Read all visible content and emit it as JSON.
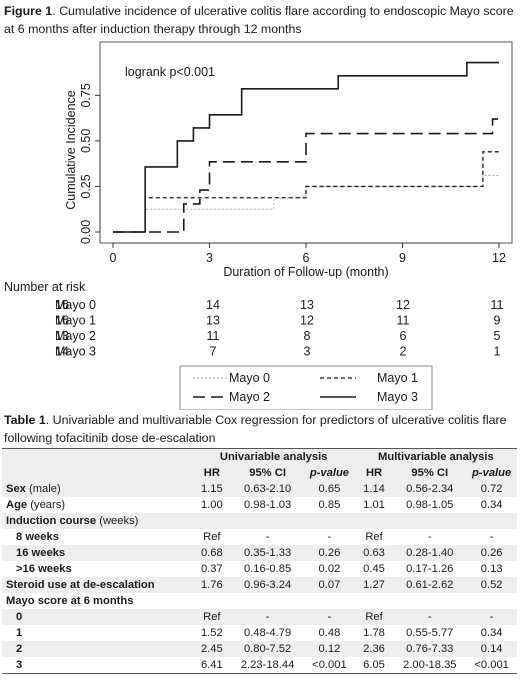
{
  "figure_caption": {
    "label": "Figure 1",
    "text": ". Cumulative incidence of ulcerative colitis flare according to endoscopic Mayo score at 6 months after induction therapy through 12 months"
  },
  "chart_data": {
    "type": "line",
    "step": true,
    "xlabel": "Duration of Follow-up (month)",
    "ylabel": "Cumulative Incidence",
    "x_ticks": [
      0,
      3,
      6,
      9,
      12
    ],
    "y_ticks": [
      "0.00",
      "0.25",
      "0.50",
      "0.75"
    ],
    "y_tick_values": [
      0,
      0.25,
      0.5,
      0.75
    ],
    "xlim": [
      0,
      12
    ],
    "ylim": [
      0,
      0.9
    ],
    "annotation": "logrank p<0.001",
    "series": [
      {
        "name": "Mayo 0",
        "style": "dotted",
        "color": "#aaaaaa",
        "x": [
          0,
          1.0,
          3.0,
          5.0,
          6.0,
          11.5,
          12
        ],
        "y": [
          0,
          0.125,
          0.125,
          0.188,
          0.25,
          0.31,
          0.31
        ]
      },
      {
        "name": "Mayo 1",
        "style": "short-dash",
        "color": "#1a1a1a",
        "x": [
          0,
          1.0,
          3.0,
          6.0,
          11.5,
          12
        ],
        "y": [
          0,
          0.188,
          0.188,
          0.25,
          0.44,
          0.44
        ]
      },
      {
        "name": "Mayo 2",
        "style": "long-dash",
        "color": "#1a1a1a",
        "x": [
          0,
          2.2,
          2.7,
          3.0,
          6.0,
          11.8,
          12
        ],
        "y": [
          0,
          0.154,
          0.23,
          0.385,
          0.54,
          0.62,
          0.62
        ]
      },
      {
        "name": "Mayo 3",
        "style": "solid",
        "color": "#1a1a1a",
        "x": [
          0,
          1.0,
          2.0,
          2.5,
          3.0,
          4.0,
          7.0,
          11.0,
          12
        ],
        "y": [
          0,
          0.357,
          0.5,
          0.571,
          0.643,
          0.786,
          0.857,
          0.93,
          0.93
        ]
      }
    ],
    "risk_table": {
      "title": "Number at risk",
      "rows": [
        {
          "label": "Mayo 0",
          "values": [
            "16",
            "14",
            "13",
            "12",
            "11"
          ]
        },
        {
          "label": "Mayo 1",
          "values": [
            "16",
            "13",
            "12",
            "11",
            "9"
          ]
        },
        {
          "label": "Mayo 2",
          "values": [
            "13",
            "11",
            "8",
            "6",
            "5"
          ]
        },
        {
          "label": "Mayo 3",
          "values": [
            "14",
            "7",
            "3",
            "2",
            "1"
          ]
        }
      ]
    },
    "legend": [
      "Mayo 0",
      "Mayo 1",
      "Mayo 2",
      "Mayo 3"
    ],
    "legend_position": "bottom"
  },
  "table_caption": {
    "label": "Table 1",
    "text": ". Univariable and multivariable Cox regression for predictors of ulcerative colitis flare following tofacitinib dose de-escalation"
  },
  "table": {
    "group_headers": [
      "Univariable analysis",
      "Multivariable analysis"
    ],
    "col_headers": [
      "HR",
      "95% CI",
      "p-value",
      "HR",
      "95% CI",
      "p-value"
    ],
    "rows": [
      {
        "label": "Sex",
        "label_suffix": " (male)",
        "cells": [
          "1.15",
          "0.63-2.10",
          "0.65",
          "1.14",
          "0.56-2.34",
          "0.72"
        ],
        "kind": "band"
      },
      {
        "label": "Age",
        "label_suffix": " (years)",
        "cells": [
          "1.00",
          "0.98-1.03",
          "0.85",
          "1.01",
          "0.98-1.05",
          "0.34"
        ],
        "kind": "plain"
      },
      {
        "label": "Induction course",
        "label_suffix": " (weeks)",
        "cells": [
          "",
          "",
          "",
          "",
          "",
          ""
        ],
        "kind": "band"
      },
      {
        "label": "8 weeks",
        "label_suffix": "",
        "cells": [
          "Ref",
          "-",
          "-",
          "Ref",
          "-",
          "-"
        ],
        "kind": "indent"
      },
      {
        "label": "16 weeks",
        "label_suffix": "",
        "cells": [
          "0.68",
          "0.35-1.33",
          "0.26",
          "0.63",
          "0.28-1.40",
          "0.26"
        ],
        "kind": "indent-band"
      },
      {
        "label": ">16 weeks",
        "label_suffix": "",
        "cells": [
          "0.37",
          "0.16-0.85",
          "0.02",
          "0.45",
          "0.17-1.26",
          "0.13"
        ],
        "kind": "indent"
      },
      {
        "label": "Steroid use at de-escalation",
        "label_suffix": "",
        "cells": [
          "1.76",
          "0.96-3.24",
          "0.07",
          "1.27",
          "0.61-2.62",
          "0.52"
        ],
        "kind": "band"
      },
      {
        "label": "Mayo score at 6 months",
        "label_suffix": "",
        "cells": [
          "",
          "",
          "",
          "",
          "",
          ""
        ],
        "kind": "plain"
      },
      {
        "label": "0",
        "label_suffix": "",
        "cells": [
          "Ref",
          "-",
          "-",
          "Ref",
          "-",
          "-"
        ],
        "kind": "indent-band"
      },
      {
        "label": "1",
        "label_suffix": "",
        "cells": [
          "1.52",
          "0.48-4.79",
          "0.48",
          "1.78",
          "0.55-5.77",
          "0.34"
        ],
        "kind": "indent"
      },
      {
        "label": "2",
        "label_suffix": "",
        "cells": [
          "2.45",
          "0.80-7.52",
          "0.12",
          "2.36",
          "0.76-7.33",
          "0.14"
        ],
        "kind": "indent-band"
      },
      {
        "label": "3",
        "label_suffix": "",
        "cells": [
          "6.41",
          "2.23-18.44",
          "<0.001",
          "6.05",
          "2.00-18.35",
          "<0.001"
        ],
        "kind": "indent"
      }
    ]
  }
}
